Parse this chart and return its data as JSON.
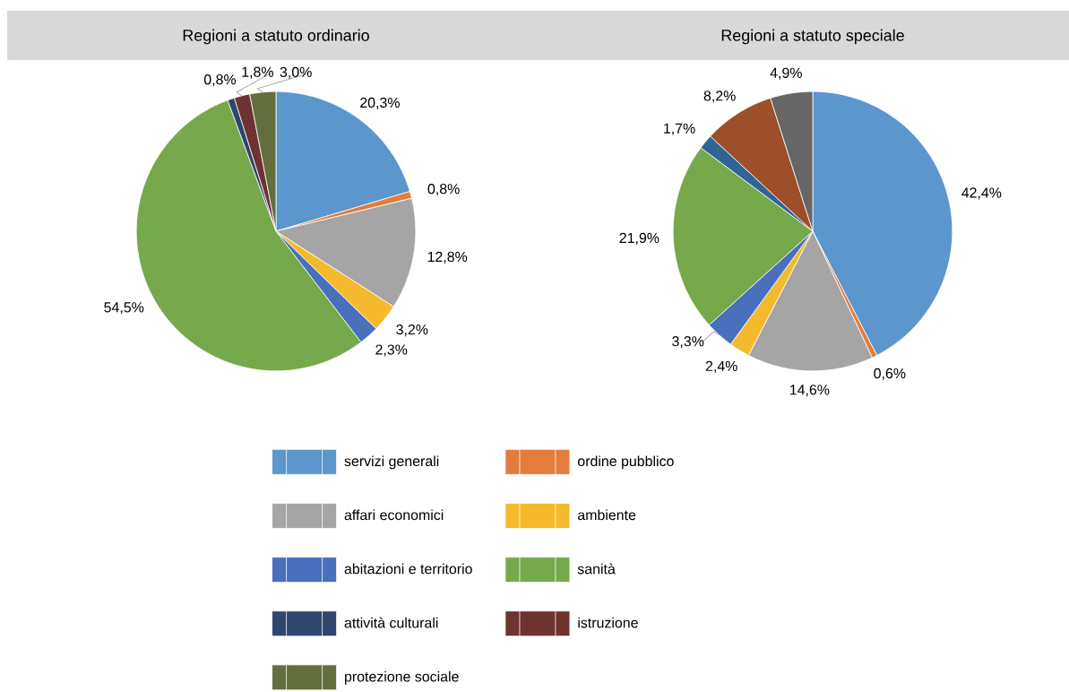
{
  "chart_data": [
    {
      "type": "pie",
      "title": "Regioni a statuto ordinario",
      "legend": "bottom",
      "categories": [
        "servizi generali",
        "ordine pubblico",
        "affari economici",
        "ambiente",
        "abitazioni e territorio",
        "sanità",
        "attività culturali",
        "istruzione",
        "protezione sociale"
      ],
      "values": [
        20.3,
        0.8,
        12.8,
        3.2,
        2.3,
        54.5,
        0.8,
        1.8,
        3.0
      ],
      "value_labels": [
        "20,3%",
        "0,8%",
        "12,8%",
        "3,2%",
        "2,3%",
        "54,5%",
        "0,8%",
        "1,8%",
        "3,0%"
      ],
      "colors": [
        "#5b96cc",
        "#e47c3c",
        "#a5a5a5",
        "#f4b92c",
        "#4870bd",
        "#75a94b",
        "#2f466e",
        "#6e3230",
        "#636e3c"
      ]
    },
    {
      "type": "pie",
      "title": "Regioni a statuto speciale",
      "categories": [
        null,
        null,
        null,
        null,
        null,
        null,
        null,
        null,
        null
      ],
      "values": [
        42.4,
        0.6,
        14.6,
        2.4,
        3.3,
        21.9,
        1.7,
        8.2,
        4.9
      ],
      "value_labels": [
        "42,4%",
        "0,6%",
        "14,6%",
        "2,4%",
        "3,3%",
        "21,9%",
        "1,7%",
        "8,2%",
        "4,9%"
      ],
      "colors": [
        "#5b96cc",
        "#e47c3c",
        "#a5a5a5",
        "#f4b92c",
        "#4870bd",
        "#75a94b",
        "#2f6496",
        "#9c4f28",
        "#666666"
      ]
    }
  ]
}
